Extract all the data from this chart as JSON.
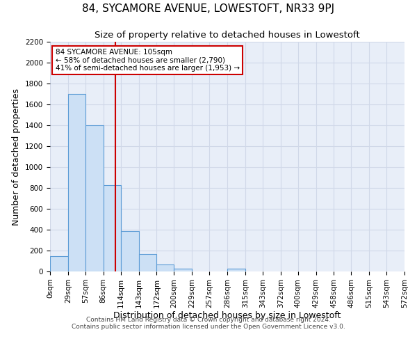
{
  "title": "84, SYCAMORE AVENUE, LOWESTOFT, NR33 9PJ",
  "subtitle": "Size of property relative to detached houses in Lowestoft",
  "xlabel": "Distribution of detached houses by size in Lowestoft",
  "ylabel": "Number of detached properties",
  "bin_edges": [
    0,
    29,
    57,
    86,
    114,
    143,
    172,
    200,
    229,
    257,
    286,
    315,
    343,
    372,
    400,
    429,
    458,
    486,
    515,
    543,
    572
  ],
  "bar_heights": [
    150,
    1700,
    1400,
    825,
    390,
    165,
    65,
    30,
    0,
    0,
    30,
    0,
    0,
    0,
    0,
    0,
    0,
    0,
    0,
    0
  ],
  "bar_color": "#cce0f5",
  "bar_edgecolor": "#5b9bd5",
  "vline_x": 105,
  "vline_color": "#cc0000",
  "annotation_title": "84 SYCAMORE AVENUE: 105sqm",
  "annotation_line1": "← 58% of detached houses are smaller (2,790)",
  "annotation_line2": "41% of semi-detached houses are larger (1,953) →",
  "annotation_box_edgecolor": "#cc0000",
  "annotation_box_facecolor": "#ffffff",
  "ylim": [
    0,
    2200
  ],
  "xlim": [
    0,
    572
  ],
  "grid_color": "#d0d8e8",
  "bg_color": "#e8eef8",
  "footnote1": "Contains HM Land Registry data © Crown copyright and database right 2024.",
  "footnote2": "Contains public sector information licensed under the Open Government Licence v3.0.",
  "title_fontsize": 11,
  "subtitle_fontsize": 9.5,
  "axis_label_fontsize": 9,
  "tick_fontsize": 7.5
}
